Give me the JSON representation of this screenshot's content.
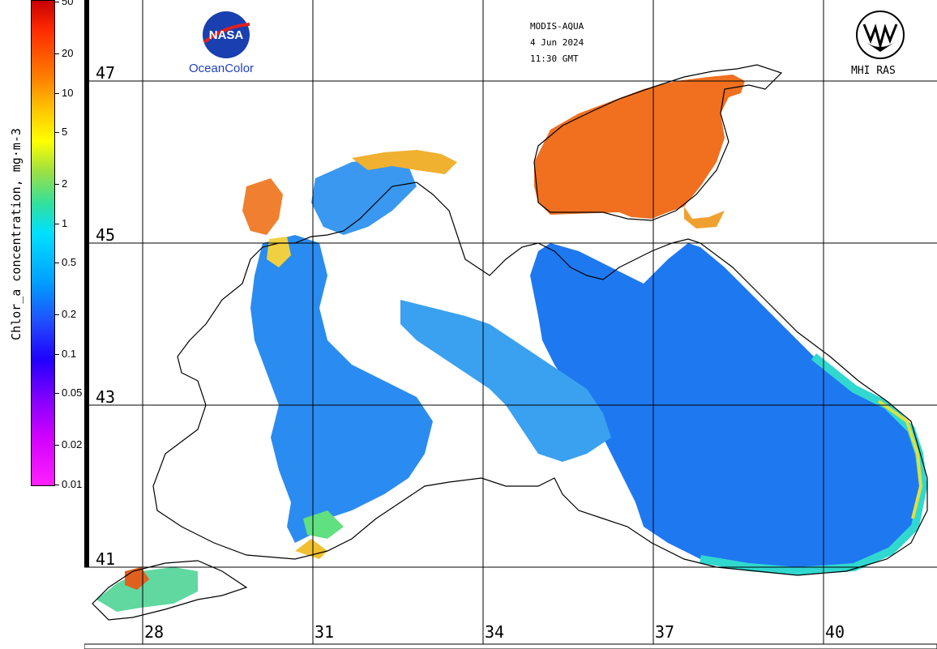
{
  "header": {
    "sensor": "MODIS-AQUA",
    "date": "4 Jun 2024",
    "time": "11:30 GMT"
  },
  "logos": {
    "left_name": "nasa-logo",
    "left_caption": "OceanColor",
    "right_name": "mhi-ras-logo",
    "right_caption": "MHI RAS"
  },
  "colorbar": {
    "title": "Chlor_a concentration, mg·m-3",
    "ticks": [
      "50",
      "20",
      "10",
      "5",
      "2",
      "1",
      "0.5",
      "0.2",
      "0.1",
      "0.05",
      "0.02",
      "0.01"
    ],
    "colors": {
      "high": "#c80000",
      "mid": "#00e0ff",
      "low": "#ff20ff"
    }
  },
  "grid": {
    "latitudes": [
      "47",
      "45",
      "43",
      "41"
    ],
    "longitudes": [
      "28",
      "31",
      "34",
      "37",
      "40"
    ]
  },
  "colors": {
    "azov_sea": "#f07020",
    "open_sea": "#2090f0",
    "coastal": "#30d0e0",
    "bloom": "#f0a020",
    "land": "#ffffff",
    "coastline": "#000000"
  }
}
